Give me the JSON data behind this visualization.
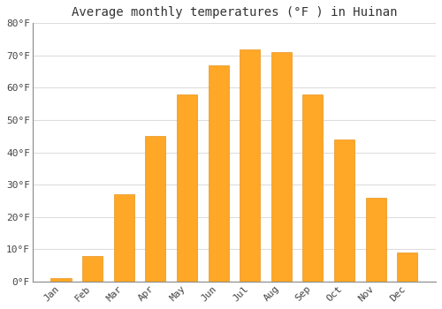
{
  "months": [
    "Jan",
    "Feb",
    "Mar",
    "Apr",
    "May",
    "Jun",
    "Jul",
    "Aug",
    "Sep",
    "Oct",
    "Nov",
    "Dec"
  ],
  "values": [
    1,
    8,
    27,
    45,
    58,
    67,
    72,
    71,
    58,
    44,
    26,
    9
  ],
  "bar_color": "#FFA726",
  "bar_edge_color": "#E69520",
  "title": "Average monthly temperatures (°F ) in Huinan",
  "ylim": [
    0,
    80
  ],
  "yticks": [
    0,
    10,
    20,
    30,
    40,
    50,
    60,
    70,
    80
  ],
  "grid_color": "#dddddd",
  "background_color": "#ffffff",
  "plot_bg_color": "#ffffff",
  "title_fontsize": 10,
  "tick_fontsize": 8,
  "font_family": "monospace",
  "bar_width": 0.65
}
